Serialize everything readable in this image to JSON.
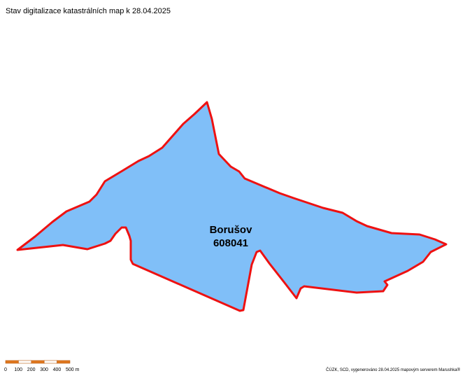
{
  "header": {
    "title": "Stav digitalizace katastrálních map k 28.04.2025"
  },
  "area": {
    "name": "Borušov",
    "code": "608041"
  },
  "scale": {
    "labels": [
      "0",
      "100",
      "200",
      "300",
      "400",
      "500 m"
    ]
  },
  "footer": {
    "credit": "ČÚZK, SCD, vygenerováno 28.04.2025 mapovým serverem Marushka®"
  }
}
